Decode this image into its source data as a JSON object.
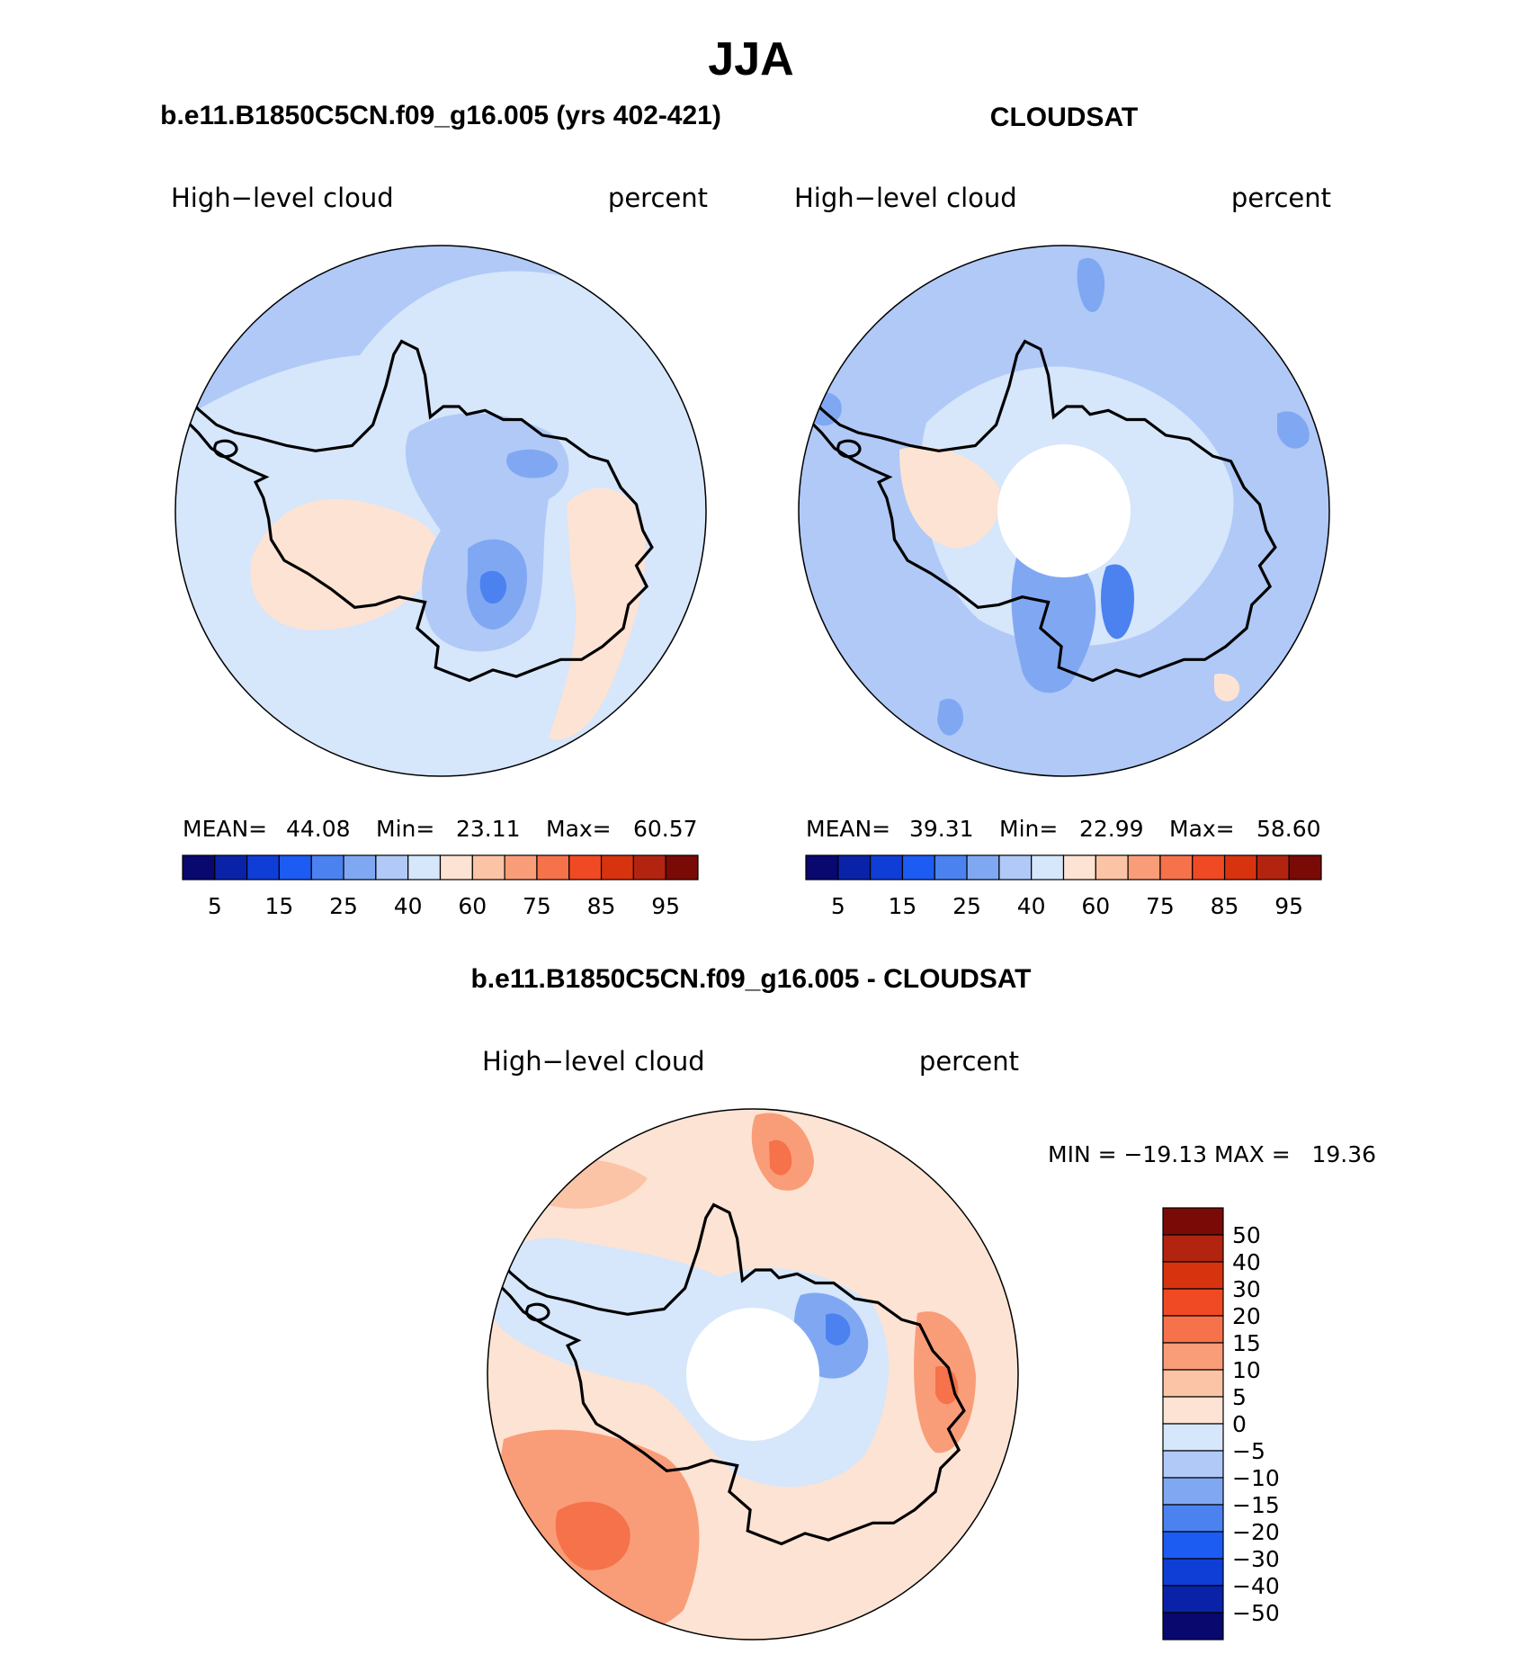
{
  "figure": {
    "season": "JJA",
    "left_title": "b.e11.B1850C5CN.f09_g16.005 (yrs 402-421)",
    "right_title": "CLOUDSAT",
    "bottom_title": "b.e11.B1850C5CN.f09_g16.005 - CLOUDSAT"
  },
  "panels": [
    {
      "id": "model",
      "variable": "High−level cloud",
      "units": "percent",
      "stats": {
        "mean_label": "MEAN=",
        "mean": "44.08",
        "min_label": "Min=",
        "min": "23.11",
        "max_label": "Max=",
        "max": "60.57"
      }
    },
    {
      "id": "obs",
      "variable": "High−level cloud",
      "units": "percent",
      "stats": {
        "mean_label": "MEAN=",
        "mean": "39.31",
        "min_label": "Min=",
        "min": "22.99",
        "max_label": "Max=",
        "max": "58.60"
      }
    },
    {
      "id": "diff",
      "variable": "High−level cloud",
      "units": "percent",
      "stats": {
        "text": "MIN = −19.13 MAX =   19.36"
      }
    }
  ],
  "colorbar_abs": {
    "labels": [
      "5",
      "15",
      "25",
      "40",
      "60",
      "75",
      "85",
      "95"
    ],
    "colors": [
      "#08086e",
      "#0a22a8",
      "#0f3ed6",
      "#1d5cf2",
      "#4b82f0",
      "#80a8f2",
      "#b0c9f7",
      "#d6e6fb",
      "#fde3d3",
      "#fbc4a6",
      "#f99d78",
      "#f5724b",
      "#f04a24",
      "#d8330f",
      "#b32410",
      "#7a0a06"
    ]
  },
  "colorbar_diff": {
    "labels": [
      "50",
      "40",
      "30",
      "20",
      "15",
      "10",
      "5",
      "0",
      "−5",
      "−10",
      "−15",
      "−20",
      "−30",
      "−40",
      "−50"
    ],
    "colors": [
      "#7a0a06",
      "#b32410",
      "#d8330f",
      "#f04a24",
      "#f5724b",
      "#f99d78",
      "#fbc4a6",
      "#fde3d3",
      "#d6e6fb",
      "#b0c9f7",
      "#80a8f2",
      "#4b82f0",
      "#1d5cf2",
      "#0f3ed6",
      "#0a22a8",
      "#08086e"
    ]
  },
  "chart_data": [
    {
      "type": "heatmap",
      "title": "b.e11.B1850C5CN.f09_g16.005 (yrs 402-421)",
      "projection": "south polar stereographic",
      "variable": "High-level cloud",
      "units": "percent",
      "mean": 44.08,
      "min": 23.11,
      "max": 60.57,
      "levels": [
        5,
        10,
        15,
        20,
        25,
        30,
        40,
        50,
        60,
        65,
        75,
        80,
        85,
        90,
        95
      ]
    },
    {
      "type": "heatmap",
      "title": "CLOUDSAT",
      "projection": "south polar stereographic",
      "variable": "High-level cloud",
      "units": "percent",
      "mean": 39.31,
      "min": 22.99,
      "max": 58.6,
      "levels": [
        5,
        10,
        15,
        20,
        25,
        30,
        40,
        50,
        60,
        65,
        75,
        80,
        85,
        90,
        95
      ]
    },
    {
      "type": "heatmap",
      "title": "b.e11.B1850C5CN.f09_g16.005 - CLOUDSAT",
      "projection": "south polar stereographic",
      "variable": "High-level cloud",
      "units": "percent",
      "min": -19.13,
      "max": 19.36,
      "levels": [
        -50,
        -40,
        -30,
        -20,
        -15,
        -10,
        -5,
        0,
        5,
        10,
        15,
        20,
        30,
        40,
        50
      ]
    }
  ]
}
